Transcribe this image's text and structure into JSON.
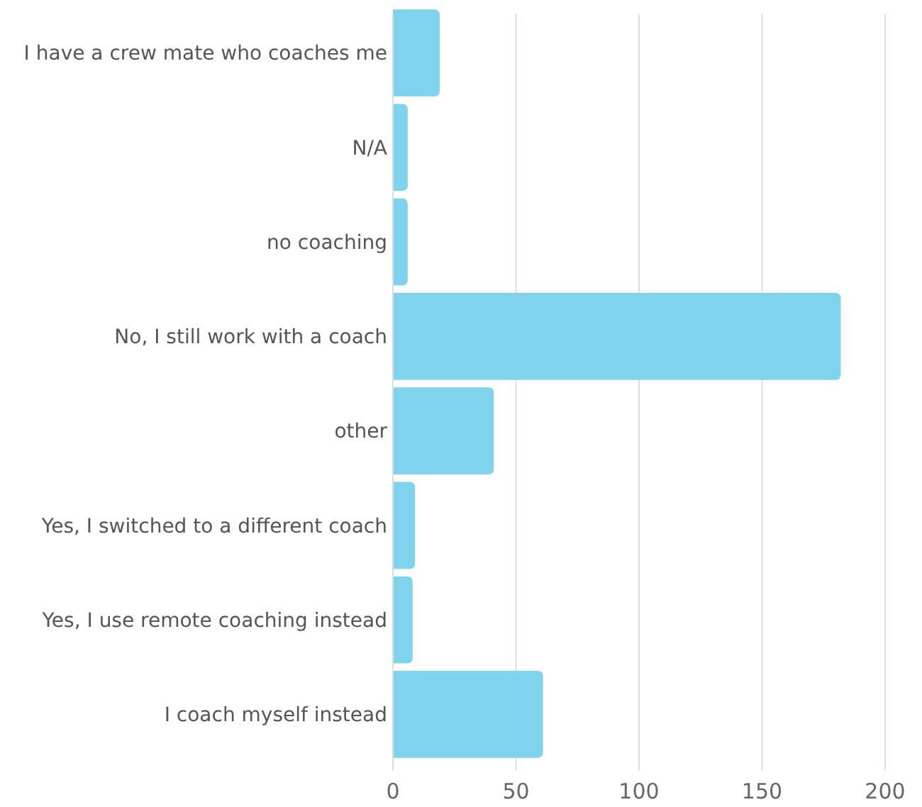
{
  "chart_data": {
    "type": "bar",
    "orientation": "horizontal",
    "categories": [
      "I have a crew mate who coaches me",
      "N/A",
      "no coaching",
      "No, I still work with a coach",
      "other",
      "Yes, I switched to a different coach",
      "Yes, I use remote coaching instead",
      "I coach myself instead"
    ],
    "values": [
      19,
      6,
      6,
      182,
      41,
      9,
      8,
      61
    ],
    "color": "#7fd3ed",
    "xlim": [
      0,
      200
    ],
    "xticks": [
      0,
      50,
      100,
      150,
      200
    ],
    "grid": "x"
  }
}
